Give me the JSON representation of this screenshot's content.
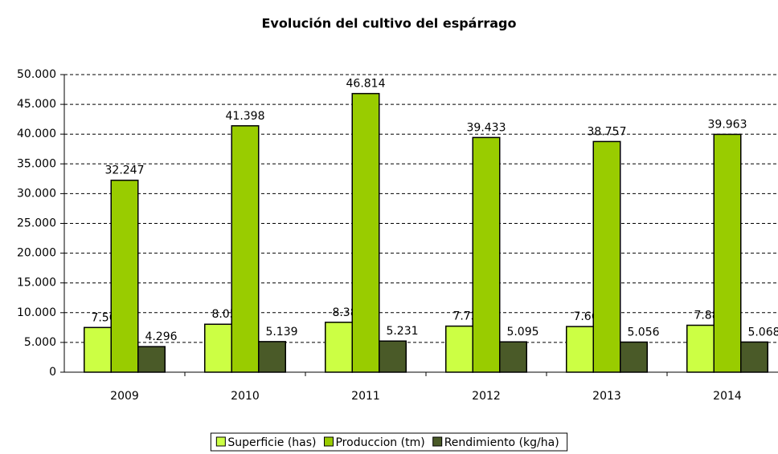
{
  "chart_data": {
    "type": "bar",
    "title": "Evolución del cultivo del espárrago",
    "categories": [
      "2009",
      "2010",
      "2011",
      "2012",
      "2013",
      "2014"
    ],
    "series": [
      {
        "name": "Superficie (has)",
        "color": "#ccff44",
        "values": [
          7507,
          8056,
          8383,
          7739,
          7666,
          7885
        ],
        "value_labels": [
          "7.507",
          "8.056",
          "8.383",
          "7.739",
          "7.666",
          "7.885"
        ]
      },
      {
        "name": "Produccion (tm)",
        "color": "#99cc00",
        "values": [
          32247,
          41398,
          46814,
          39433,
          38757,
          39963
        ],
        "value_labels": [
          "32.247",
          "41.398",
          "46.814",
          "39.433",
          "38.757",
          "39.963"
        ]
      },
      {
        "name": "Rendimiento (kg/ha)",
        "color": "#4a5a28",
        "values": [
          4296,
          5139,
          5231,
          5095,
          5056,
          5068
        ],
        "value_labels": [
          "4.296",
          "5.139",
          "5.231",
          "5.095",
          "5.056",
          "5.068"
        ]
      }
    ],
    "ylim": [
      0,
      50000
    ],
    "yticks": [
      0,
      {
        "value": 5000,
        "label": "5.000"
      },
      {
        "value": 10000,
        "label": "10.000"
      },
      {
        "value": 15000,
        "label": "15.000"
      },
      {
        "value": 20000,
        "label": "20.000"
      },
      {
        "value": 25000,
        "label": "25.000"
      },
      {
        "value": 30000,
        "label": "30.000"
      },
      {
        "value": 35000,
        "label": "35.000"
      },
      {
        "value": 40000,
        "label": "40.000"
      },
      {
        "value": 45000,
        "label": "45.000"
      },
      {
        "value": 50000,
        "label": "50.000"
      }
    ],
    "grid": true,
    "legend": "bottom"
  }
}
